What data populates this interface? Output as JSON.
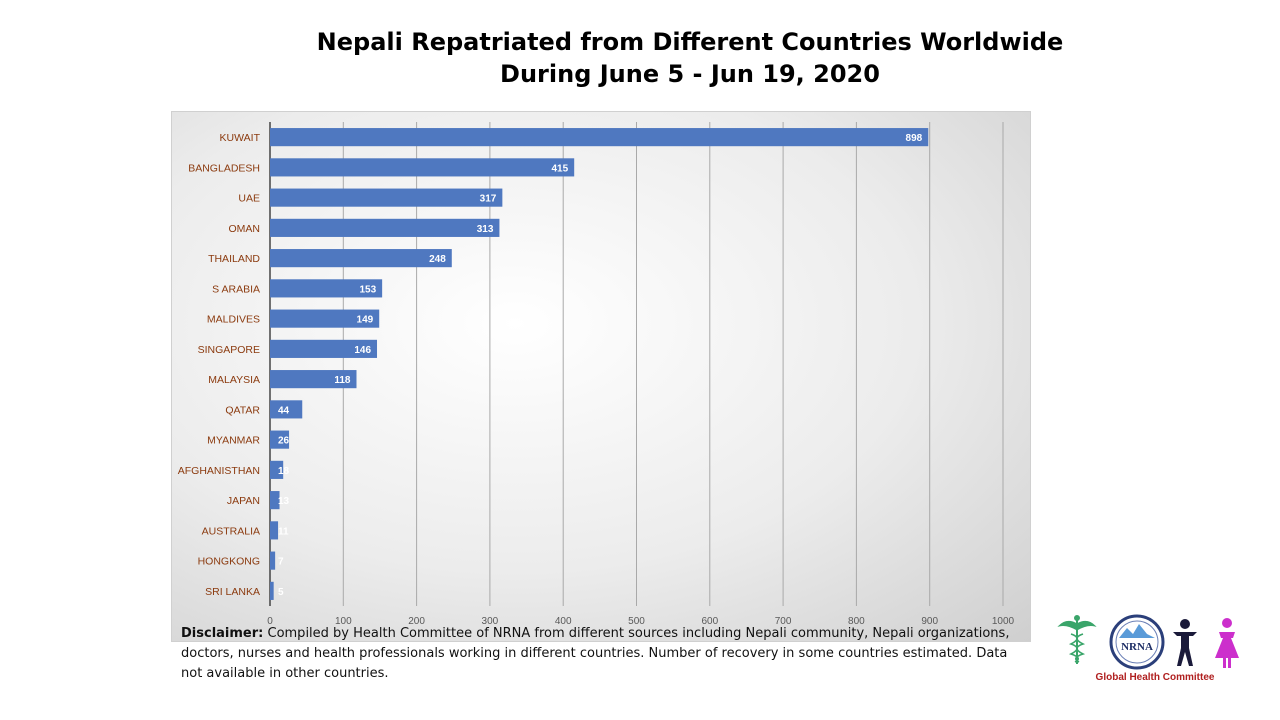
{
  "title_line1": "Nepali Repatriated from Different Countries Worldwide",
  "title_line2": "During June 5 - Jun 19, 2020",
  "disclaimer": {
    "label": "Disclaimer:",
    "text": " Compiled by Health Committee of NRNA from different sources including Nepali community, Nepali organizations, doctors, nurses and health professionals working in different countries. Number of recovery in some countries estimated. Data not available in other countries."
  },
  "logo": {
    "acronym": "NRNA",
    "caption": "Global Health Committee",
    "icons": [
      "caduceus-icon",
      "nrna-emblem-icon",
      "male-figure-icon",
      "female-figure-icon"
    ]
  },
  "colors": {
    "bar": "#4f78c0",
    "label": "#8b3a0e",
    "grid": "#a9a9a9",
    "male": "#1a1a3a",
    "female": "#cc2fcc",
    "caduceus": "#3aa56a"
  },
  "chart_data": {
    "type": "bar",
    "orientation": "horizontal",
    "categories": [
      "KUWAIT",
      "BANGLADESH",
      "UAE",
      "OMAN",
      "THAILAND",
      "S ARABIA",
      "MALDIVES",
      "SINGAPORE",
      "MALAYSIA",
      "QATAR",
      "MYANMAR",
      "AFGHANISTHAN",
      "JAPAN",
      "AUSTRALIA",
      "HONGKONG",
      "SRI LANKA"
    ],
    "values": [
      898,
      415,
      317,
      313,
      248,
      153,
      149,
      146,
      118,
      44,
      26,
      18,
      13,
      11,
      7,
      5
    ],
    "xticks": [
      "0",
      "100",
      "200",
      "300",
      "400",
      "500",
      "600",
      "700",
      "800",
      "900",
      "1000"
    ],
    "xlim": [
      0,
      1000
    ],
    "grid": true,
    "legend": "none"
  }
}
